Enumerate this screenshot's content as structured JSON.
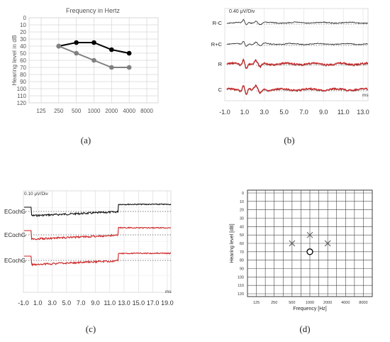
{
  "chart_data": [
    {
      "type": "line",
      "panel": "a",
      "caption": "(a)",
      "title": "Frequency in Hertz",
      "ylabel": "Hearing level in dB",
      "x_ticks": [
        "125",
        "250",
        "500",
        "1000",
        "2000",
        "4000",
        "8000"
      ],
      "y_ticks": [
        "0",
        "10",
        "20",
        "30",
        "40",
        "50",
        "60",
        "70",
        "80",
        "90",
        "100",
        "110",
        "120"
      ],
      "ylim": [
        0,
        120
      ],
      "y_reversed": true,
      "grid": true,
      "series": [
        {
          "color": "#000000",
          "x": [
            "250",
            "500",
            "1000",
            "2000",
            "4000"
          ],
          "values": [
            40,
            35,
            35,
            45,
            50
          ]
        },
        {
          "color": "#808080",
          "x": [
            "250",
            "500",
            "1000",
            "2000",
            "4000"
          ],
          "values": [
            40,
            50,
            60,
            70,
            70
          ]
        }
      ]
    },
    {
      "type": "line",
      "panel": "b",
      "caption": "(b)",
      "scale_label": "0.40 μV/Div",
      "unit_label": "ms",
      "xlim": [
        -1.0,
        13.5
      ],
      "x_ticks": [
        "-1.0",
        "1.0",
        "3.0",
        "5.0",
        "7.0",
        "9.0",
        "11.0",
        "13.0"
      ],
      "grid": true,
      "traces": [
        {
          "label": "R-C",
          "color": "#333333"
        },
        {
          "label": "R+C",
          "color": "#333333"
        },
        {
          "label": "R",
          "color": "#cc2222"
        },
        {
          "label": "C",
          "color": "#cc2222"
        }
      ]
    },
    {
      "type": "line",
      "panel": "c",
      "caption": "(c)",
      "scale_label": "0.10 μV/Div",
      "unit_label": "ms",
      "xlim": [
        -1.0,
        19.5
      ],
      "x_ticks": [
        "-1.0",
        "1.0",
        "3.0",
        "5.0",
        "7.0",
        "9.0",
        "11.0",
        "13.0",
        "15.0",
        "17.0",
        "19.0"
      ],
      "grid": true,
      "traces": [
        {
          "label": "ECochG",
          "color": "#111111"
        },
        {
          "label": "ECochG",
          "color": "#cc2222"
        },
        {
          "label": "ECochG",
          "color": "#cc2222"
        }
      ]
    },
    {
      "type": "scatter",
      "panel": "d",
      "caption": "(d)",
      "xlabel": "Frequency [Hz]",
      "ylabel": "Hearing level [dB]",
      "x_ticks": [
        "125",
        "250",
        "500",
        "1000",
        "2000",
        "4000",
        "8000"
      ],
      "y_ticks": [
        "0",
        "10",
        "20",
        "30",
        "40",
        "50",
        "60",
        "70",
        "80",
        "90",
        "100",
        "110",
        "120"
      ],
      "ylim": [
        0,
        120
      ],
      "y_reversed": true,
      "grid": true,
      "series": [
        {
          "marker": "cross",
          "x": [
            "500",
            "1000",
            "2000"
          ],
          "values": [
            60,
            50,
            60
          ]
        },
        {
          "marker": "circle",
          "x": [
            "1000"
          ],
          "values": [
            70
          ]
        }
      ]
    }
  ]
}
